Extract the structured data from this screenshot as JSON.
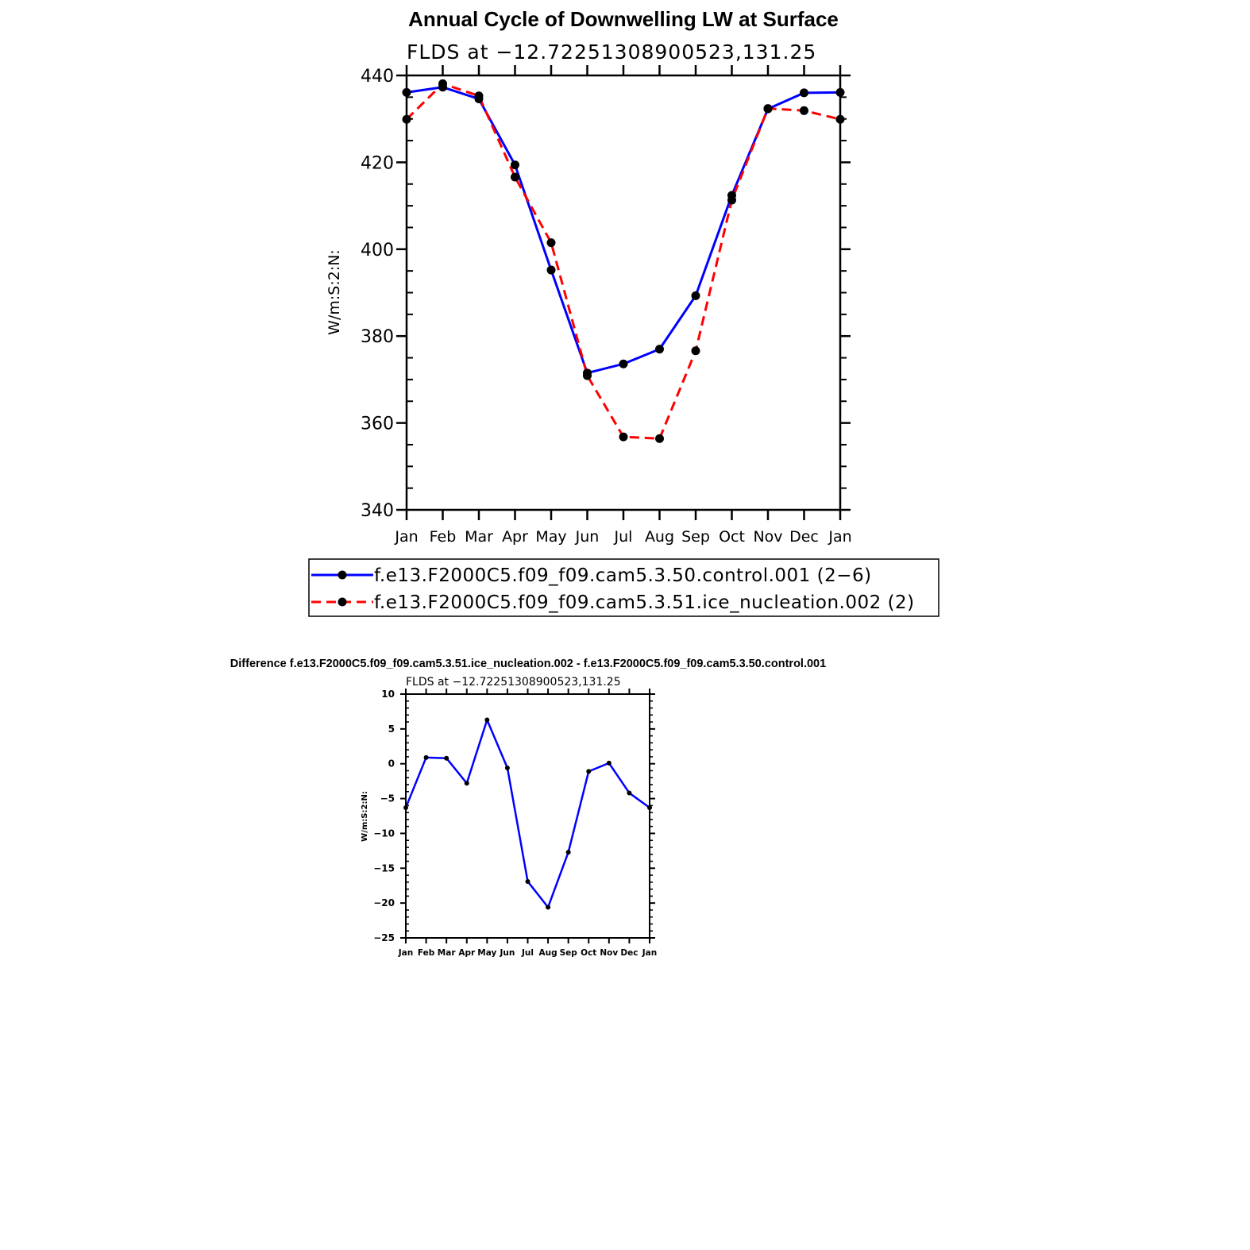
{
  "chart_data": [
    {
      "type": "line",
      "title": "Annual Cycle of Downwelling LW at Surface",
      "subtitle": "FLDS at −12.72251308900523,131.25",
      "xlabel": "",
      "ylabel": "W/m:S:2:N:",
      "categories": [
        "Jan",
        "Feb",
        "Mar",
        "Apr",
        "May",
        "Jun",
        "Jul",
        "Aug",
        "Sep",
        "Oct",
        "Nov",
        "Dec",
        "Jan"
      ],
      "ylim": [
        340,
        440
      ],
      "yticks": [
        340,
        360,
        380,
        400,
        420,
        440
      ],
      "series": [
        {
          "name": "f.e13.F2000C5.f09_f09.cam5.3.50.control.001 (2−6)",
          "color": "#0000ff",
          "style": "solid",
          "values": [
            436.1,
            437.3,
            434.6,
            419.4,
            395.2,
            371.5,
            373.6,
            377.0,
            389.3,
            412.4,
            432.3,
            436.0,
            436.1
          ]
        },
        {
          "name": "f.e13.F2000C5.f09_f09.cam5.3.51.ice_nucleation.002 (2)",
          "color": "#ff0000",
          "style": "dashed",
          "values": [
            429.9,
            438.1,
            435.3,
            416.6,
            401.5,
            370.9,
            356.8,
            356.4,
            376.6,
            411.3,
            432.4,
            431.9,
            429.9
          ]
        }
      ]
    },
    {
      "type": "line",
      "title": "Difference f.e13.F2000C5.f09_f09.cam5.3.51.ice_nucleation.002 - f.e13.F2000C5.f09_f09.cam5.3.50.control.001",
      "subtitle": "FLDS at −12.72251308900523,131.25",
      "xlabel": "",
      "ylabel": "W/m:S:2:N:",
      "categories": [
        "Jan",
        "Feb",
        "Mar",
        "Apr",
        "May",
        "Jun",
        "Jul",
        "Aug",
        "Sep",
        "Oct",
        "Nov",
        "Dec",
        "Jan"
      ],
      "ylim": [
        -25,
        10
      ],
      "yticks": [
        -25,
        -20,
        -15,
        -10,
        -5,
        0,
        5,
        10
      ],
      "ytick_labels": [
        "−25",
        "−20",
        "−15",
        "−10",
        "−5",
        "0",
        "5",
        "10"
      ],
      "series": [
        {
          "name": "difference",
          "color": "#0000ff",
          "style": "solid",
          "values": [
            -6.3,
            0.9,
            0.8,
            -2.8,
            6.3,
            -0.6,
            -16.9,
            -20.6,
            -12.7,
            -1.1,
            0.1,
            -4.2,
            -6.3
          ]
        }
      ]
    }
  ]
}
